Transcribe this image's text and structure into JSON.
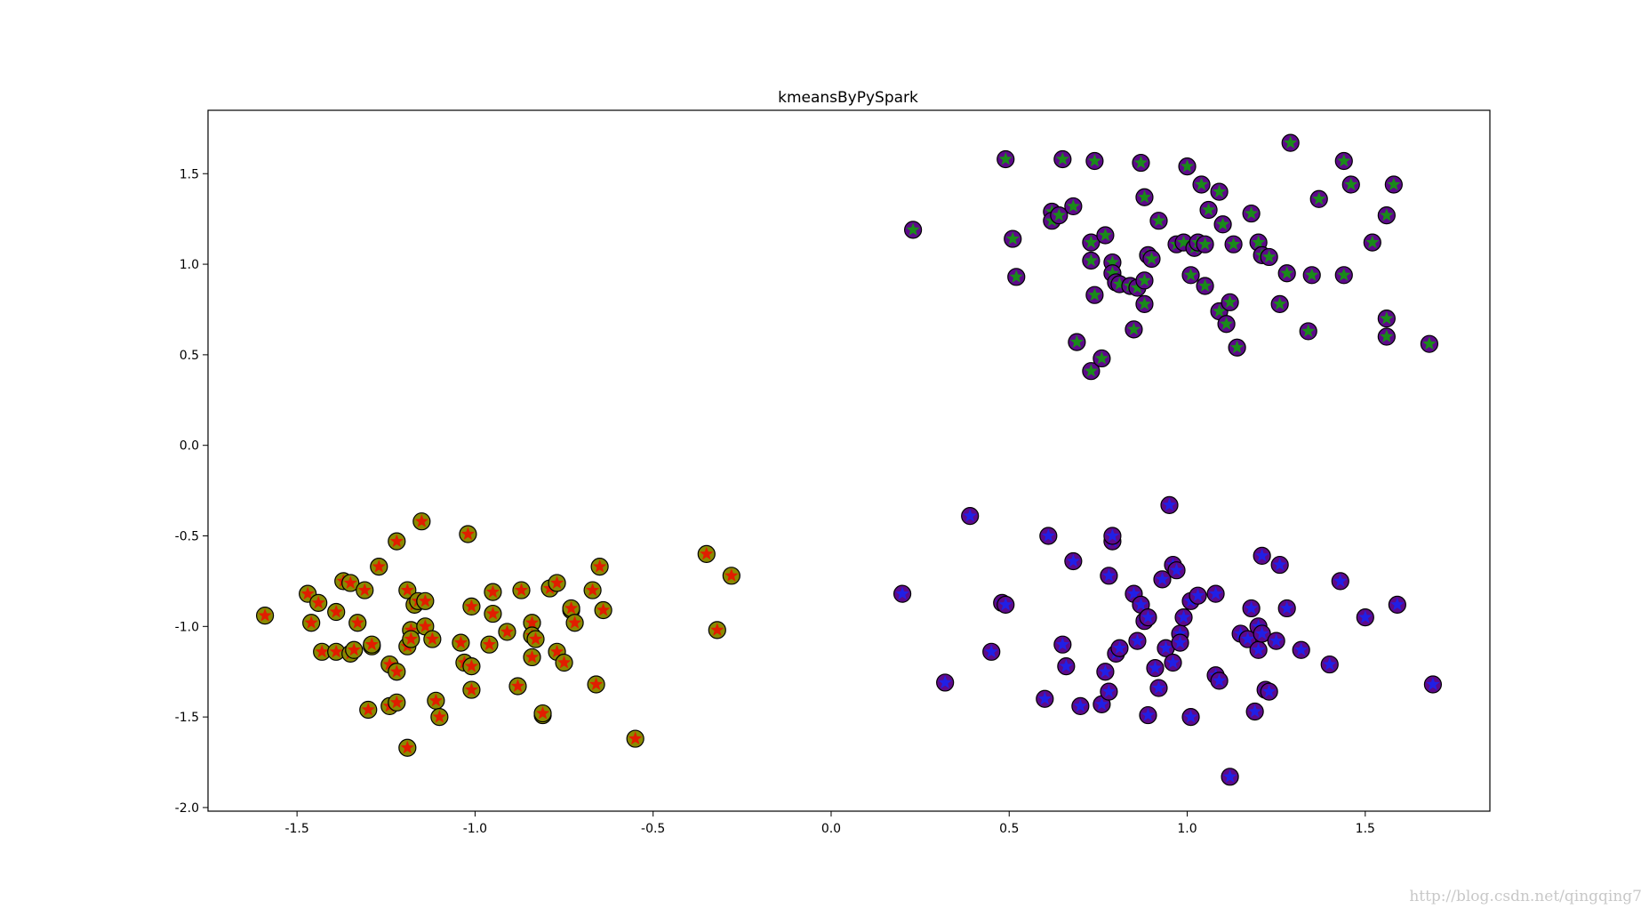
{
  "chart_data": {
    "type": "scatter",
    "title": "kmeansByPySpark",
    "xlabel": "",
    "ylabel": "",
    "xlim": [
      -1.75,
      1.85
    ],
    "ylim": [
      -2.02,
      1.85
    ],
    "grid": false,
    "xticks": [
      -1.5,
      -1.0,
      -0.5,
      0.0,
      0.5,
      1.0,
      1.5
    ],
    "xtick_labels": [
      "-1.5",
      "-1.0",
      "-0.5",
      "0.0",
      "0.5",
      "1.0",
      "1.5"
    ],
    "yticks": [
      -2.0,
      -1.5,
      -1.0,
      -0.5,
      0.0,
      0.5,
      1.0,
      1.5
    ],
    "ytick_labels": [
      "-2.0",
      "-1.5",
      "-1.0",
      "-0.5",
      "0.0",
      "0.5",
      "1.0",
      "1.5"
    ],
    "marker_shape": "star-in-circle",
    "series": [
      {
        "circle_color": "#8a8a00",
        "star_color": "#e11d00",
        "points": [
          [
            -1.59,
            -0.94
          ],
          [
            -1.47,
            -0.82
          ],
          [
            -1.46,
            -0.98
          ],
          [
            -1.44,
            -0.87
          ],
          [
            -1.43,
            -1.14
          ],
          [
            -1.39,
            -1.14
          ],
          [
            -1.39,
            -0.92
          ],
          [
            -1.37,
            -0.75
          ],
          [
            -1.35,
            -0.76
          ],
          [
            -1.35,
            -1.15
          ],
          [
            -1.34,
            -1.13
          ],
          [
            -1.33,
            -0.98
          ],
          [
            -1.31,
            -0.8
          ],
          [
            -1.3,
            -1.46
          ],
          [
            -1.29,
            -1.11
          ],
          [
            -1.29,
            -1.1
          ],
          [
            -1.27,
            -0.67
          ],
          [
            -1.24,
            -1.44
          ],
          [
            -1.24,
            -1.21
          ],
          [
            -1.22,
            -1.25
          ],
          [
            -1.22,
            -0.53
          ],
          [
            -1.22,
            -1.42
          ],
          [
            -1.19,
            -1.67
          ],
          [
            -1.19,
            -1.11
          ],
          [
            -1.19,
            -0.8
          ],
          [
            -1.18,
            -1.02
          ],
          [
            -1.18,
            -1.07
          ],
          [
            -1.17,
            -0.88
          ],
          [
            -1.16,
            -0.86
          ],
          [
            -1.15,
            -0.42
          ],
          [
            -1.14,
            -0.86
          ],
          [
            -1.14,
            -1.0
          ],
          [
            -1.12,
            -1.07
          ],
          [
            -1.11,
            -1.41
          ],
          [
            -1.1,
            -1.5
          ],
          [
            -1.04,
            -1.09
          ],
          [
            -1.03,
            -1.2
          ],
          [
            -1.02,
            -0.49
          ],
          [
            -1.01,
            -1.22
          ],
          [
            -1.01,
            -0.89
          ],
          [
            -1.01,
            -1.35
          ],
          [
            -0.96,
            -1.1
          ],
          [
            -0.95,
            -0.93
          ],
          [
            -0.95,
            -0.81
          ],
          [
            -0.91,
            -1.03
          ],
          [
            -0.88,
            -1.33
          ],
          [
            -0.87,
            -0.8
          ],
          [
            -0.84,
            -1.17
          ],
          [
            -0.84,
            -0.98
          ],
          [
            -0.84,
            -1.05
          ],
          [
            -0.83,
            -1.07
          ],
          [
            -0.81,
            -1.49
          ],
          [
            -0.81,
            -1.48
          ],
          [
            -0.79,
            -0.79
          ],
          [
            -0.77,
            -0.76
          ],
          [
            -0.77,
            -1.14
          ],
          [
            -0.75,
            -1.2
          ],
          [
            -0.73,
            -0.91
          ],
          [
            -0.73,
            -0.9
          ],
          [
            -0.72,
            -0.98
          ],
          [
            -0.67,
            -0.8
          ],
          [
            -0.66,
            -1.32
          ],
          [
            -0.65,
            -0.67
          ],
          [
            -0.64,
            -0.91
          ],
          [
            -0.55,
            -1.62
          ],
          [
            -0.35,
            -0.6
          ],
          [
            -0.32,
            -1.02
          ],
          [
            -0.28,
            -0.72
          ]
        ]
      },
      {
        "circle_color": "#5e0a8a",
        "star_color": "#1a8a1a",
        "points": [
          [
            0.23,
            1.19
          ],
          [
            0.49,
            1.58
          ],
          [
            0.51,
            1.14
          ],
          [
            0.52,
            0.93
          ],
          [
            0.62,
            1.29
          ],
          [
            0.62,
            1.24
          ],
          [
            0.64,
            1.27
          ],
          [
            0.65,
            1.58
          ],
          [
            0.68,
            1.32
          ],
          [
            0.69,
            0.57
          ],
          [
            0.73,
            1.02
          ],
          [
            0.73,
            1.12
          ],
          [
            0.74,
            1.57
          ],
          [
            0.73,
            0.41
          ],
          [
            0.74,
            0.83
          ],
          [
            0.76,
            0.48
          ],
          [
            0.77,
            1.16
          ],
          [
            0.79,
            1.01
          ],
          [
            0.79,
            0.95
          ],
          [
            0.8,
            0.9
          ],
          [
            0.81,
            0.89
          ],
          [
            0.84,
            0.88
          ],
          [
            0.85,
            0.64
          ],
          [
            0.86,
            0.87
          ],
          [
            0.87,
            1.56
          ],
          [
            0.88,
            1.37
          ],
          [
            0.88,
            0.78
          ],
          [
            0.88,
            0.91
          ],
          [
            0.89,
            1.05
          ],
          [
            0.9,
            1.03
          ],
          [
            0.92,
            1.24
          ],
          [
            0.97,
            1.11
          ],
          [
            0.99,
            1.12
          ],
          [
            1.0,
            1.54
          ],
          [
            1.01,
            0.94
          ],
          [
            1.02,
            1.09
          ],
          [
            1.03,
            1.12
          ],
          [
            1.04,
            1.44
          ],
          [
            1.05,
            1.11
          ],
          [
            1.05,
            0.88
          ],
          [
            1.06,
            1.3
          ],
          [
            1.09,
            1.4
          ],
          [
            1.09,
            0.74
          ],
          [
            1.1,
            1.22
          ],
          [
            1.11,
            0.67
          ],
          [
            1.12,
            0.79
          ],
          [
            1.13,
            1.11
          ],
          [
            1.14,
            0.54
          ],
          [
            1.18,
            1.28
          ],
          [
            1.2,
            1.12
          ],
          [
            1.21,
            1.05
          ],
          [
            1.23,
            1.04
          ],
          [
            1.26,
            0.78
          ],
          [
            1.28,
            0.95
          ],
          [
            1.29,
            1.67
          ],
          [
            1.34,
            0.63
          ],
          [
            1.35,
            0.94
          ],
          [
            1.37,
            1.36
          ],
          [
            1.44,
            1.57
          ],
          [
            1.44,
            0.94
          ],
          [
            1.46,
            1.44
          ],
          [
            1.52,
            1.12
          ],
          [
            1.56,
            1.27
          ],
          [
            1.56,
            0.7
          ],
          [
            1.56,
            0.6
          ],
          [
            1.58,
            1.44
          ],
          [
            1.68,
            0.56
          ]
        ]
      },
      {
        "circle_color": "#5e0a8a",
        "star_color": "#2020e6",
        "points": [
          [
            0.2,
            -0.82
          ],
          [
            0.32,
            -1.31
          ],
          [
            0.39,
            -0.39
          ],
          [
            0.45,
            -1.14
          ],
          [
            0.48,
            -0.87
          ],
          [
            0.49,
            -0.88
          ],
          [
            0.6,
            -1.4
          ],
          [
            0.61,
            -0.5
          ],
          [
            0.65,
            -1.1
          ],
          [
            0.66,
            -1.22
          ],
          [
            0.68,
            -0.64
          ],
          [
            0.7,
            -1.44
          ],
          [
            0.76,
            -1.43
          ],
          [
            0.77,
            -1.25
          ],
          [
            0.78,
            -0.72
          ],
          [
            0.78,
            -1.36
          ],
          [
            0.79,
            -0.53
          ],
          [
            0.79,
            -0.5
          ],
          [
            0.8,
            -1.15
          ],
          [
            0.81,
            -1.12
          ],
          [
            0.85,
            -0.82
          ],
          [
            0.86,
            -1.08
          ],
          [
            0.87,
            -0.88
          ],
          [
            0.88,
            -0.97
          ],
          [
            0.89,
            -1.49
          ],
          [
            0.89,
            -0.95
          ],
          [
            0.91,
            -1.23
          ],
          [
            0.92,
            -1.34
          ],
          [
            0.93,
            -0.74
          ],
          [
            0.94,
            -1.12
          ],
          [
            0.95,
            -0.33
          ],
          [
            0.96,
            -1.2
          ],
          [
            0.96,
            -0.66
          ],
          [
            0.97,
            -0.69
          ],
          [
            0.98,
            -1.04
          ],
          [
            0.98,
            -1.09
          ],
          [
            0.99,
            -0.95
          ],
          [
            1.01,
            -0.86
          ],
          [
            1.01,
            -1.5
          ],
          [
            1.03,
            -0.83
          ],
          [
            1.08,
            -0.82
          ],
          [
            1.08,
            -1.27
          ],
          [
            1.09,
            -1.3
          ],
          [
            1.12,
            -1.83
          ],
          [
            1.15,
            -1.04
          ],
          [
            1.17,
            -1.07
          ],
          [
            1.18,
            -0.9
          ],
          [
            1.19,
            -1.47
          ],
          [
            1.2,
            -1.13
          ],
          [
            1.2,
            -1.0
          ],
          [
            1.21,
            -0.61
          ],
          [
            1.21,
            -1.04
          ],
          [
            1.22,
            -1.35
          ],
          [
            1.23,
            -1.36
          ],
          [
            1.25,
            -1.08
          ],
          [
            1.26,
            -0.66
          ],
          [
            1.28,
            -0.9
          ],
          [
            1.32,
            -1.13
          ],
          [
            1.4,
            -1.21
          ],
          [
            1.43,
            -0.75
          ],
          [
            1.5,
            -0.95
          ],
          [
            1.59,
            -0.88
          ],
          [
            1.69,
            -1.32
          ]
        ]
      }
    ]
  },
  "watermark": "http://blog.csdn.net/qingqing7"
}
